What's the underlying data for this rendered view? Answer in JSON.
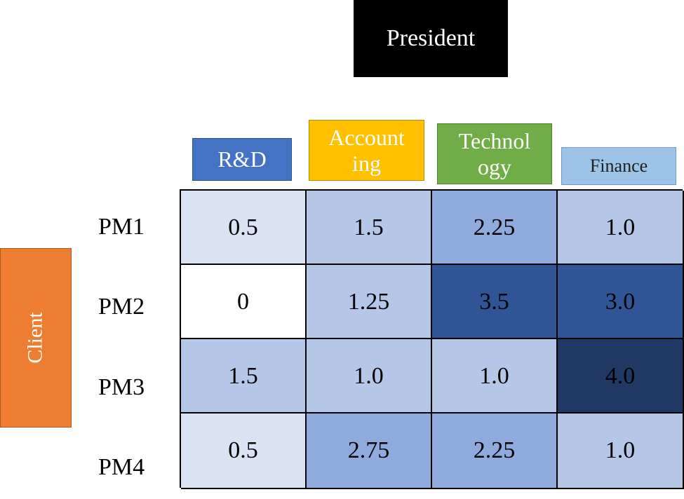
{
  "top": {
    "label": "President",
    "color": "#000000"
  },
  "side": {
    "label": "Client",
    "color": "#ed7d31"
  },
  "departments": [
    {
      "key": "rd",
      "label": "R&D",
      "color": "#4472c4"
    },
    {
      "key": "acc",
      "label": "Account\ning",
      "color": "#ffc000"
    },
    {
      "key": "tech",
      "label": "Technol\nogy",
      "color": "#70ad47"
    },
    {
      "key": "fin",
      "label": "Finance",
      "color": "#9dc3e6"
    }
  ],
  "rows": [
    "PM1",
    "PM2",
    "PM3",
    "PM4"
  ],
  "matrix": {
    "values": [
      [
        "0.5",
        "1.5",
        "2.25",
        "1.0"
      ],
      [
        "0",
        "1.25",
        "3.5",
        "3.0"
      ],
      [
        "1.5",
        "1.0",
        "1.0",
        "4.0"
      ],
      [
        "0.5",
        "2.75",
        "2.25",
        "1.0"
      ]
    ],
    "color_scale": {
      "0": "#ffffff",
      "0.5": "#dae3f3",
      "1.0": "#b4c7e7",
      "1.25": "#b4c7e7",
      "1.5": "#b4c7e7",
      "2.25": "#8faadc",
      "2.75": "#8faadc",
      "3.0": "#2f5597",
      "3.5": "#2f5597",
      "4.0": "#203864"
    }
  }
}
